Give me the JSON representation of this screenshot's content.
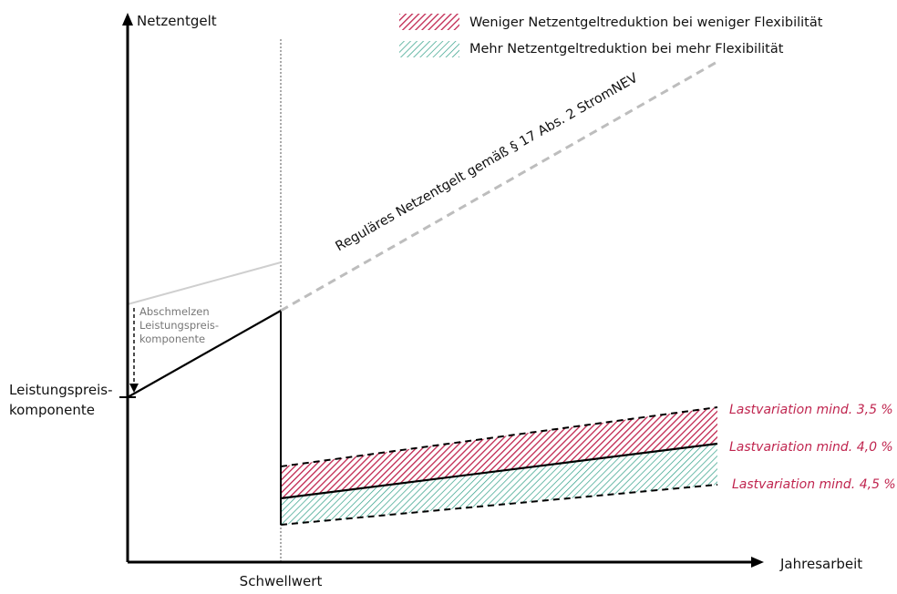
{
  "axes": {
    "y_label": "Netzentgelt",
    "x_label": "Jahresarbeit",
    "threshold_label": "Schwellwert"
  },
  "legend": {
    "items": [
      {
        "label": "Weniger Netzentgeltreduktion bei weniger Flexibilität",
        "color": "#c0254f",
        "pattern": "hatch-red"
      },
      {
        "label": "Mehr Netzentgeltreduktion bei mehr Flexibilität",
        "color": "#2e9e86",
        "pattern": "hatch-green"
      }
    ]
  },
  "annotations": {
    "regular_fee": "Reguläres Netzentgelt gemäß § 17 Abs. 2 StromNEV",
    "melting_line1": "Abschmelzen",
    "melting_line2": "Leistungspreis-",
    "melting_line3": "komponente",
    "capacity_line1": "Leistungspreis-",
    "capacity_line2": "komponente"
  },
  "variation_labels": {
    "v35": "Lastvariation mind. 3,5 %",
    "v40": "Lastvariation mind. 4,0 %",
    "v45": "Lastvariation mind. 4,5 %"
  },
  "colors": {
    "red": "#c0254f",
    "green": "#2e9e86",
    "dashed_gray": "#bdbdbd",
    "light_gray": "#cfcfcf"
  }
}
